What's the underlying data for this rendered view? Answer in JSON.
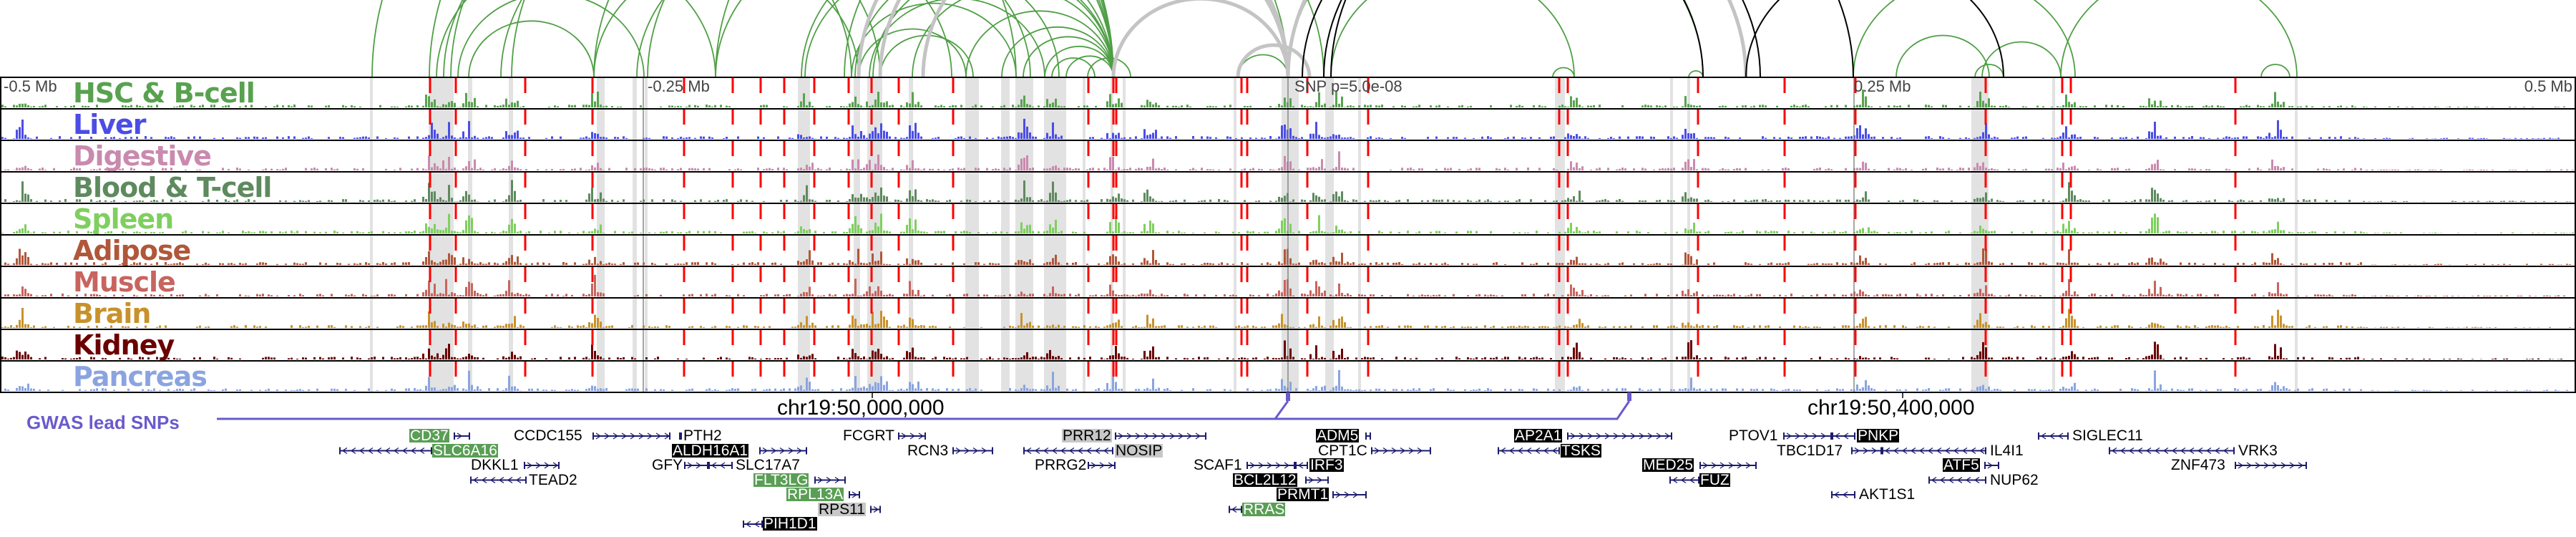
{
  "tracks": [
    {
      "label": "HSC & B-cell",
      "color": "#58a24f"
    },
    {
      "label": "Liver",
      "color": "#4b4de6"
    },
    {
      "label": "Digestive",
      "color": "#c98aae"
    },
    {
      "label": "Blood & T-cell",
      "color": "#5e8a5e"
    },
    {
      "label": "Spleen",
      "color": "#7fcf5f"
    },
    {
      "label": "Adipose",
      "color": "#b0573a"
    },
    {
      "label": "Muscle",
      "color": "#c8645e"
    },
    {
      "label": "Brain",
      "color": "#c8922a"
    },
    {
      "label": "Kidney",
      "color": "#6b0000"
    },
    {
      "label": "Pancreas",
      "color": "#8aa4e0"
    }
  ],
  "axis": {
    "left": "-0.5 Mb",
    "left_mid": "-0.25 Mb",
    "snp": "SNP p=5.0e-08",
    "right_mid": "0.25 Mb",
    "right": "0.5 Mb"
  },
  "coords": {
    "c1": "chr19:50,000,000",
    "c2": "chr19:50,400,000"
  },
  "gwas": {
    "label": "GWAS lead SNPs",
    "color": "#6a5acd"
  },
  "colors": {
    "snp_line": "#ff0000",
    "arc_green": "#4f9f45",
    "arc_gray": "#c4c4c4",
    "arc_black": "#000000",
    "gene_line": "#1c1c6e"
  },
  "genes": [
    {
      "name": "CD37",
      "style": "green",
      "strand": "+"
    },
    {
      "name": "SLC6A16",
      "style": "green",
      "strand": "-"
    },
    {
      "name": "CCDC155",
      "style": "plain",
      "strand": "+"
    },
    {
      "name": "PTH2",
      "style": "plain",
      "strand": "+"
    },
    {
      "name": "ALDH16A1",
      "style": "black",
      "strand": "+"
    },
    {
      "name": "DKKL1",
      "style": "plain",
      "strand": "+"
    },
    {
      "name": "GFY",
      "style": "plain",
      "strand": "+"
    },
    {
      "name": "SLC17A7",
      "style": "plain",
      "strand": "-"
    },
    {
      "name": "TEAD2",
      "style": "plain",
      "strand": "-"
    },
    {
      "name": "FLT3LG",
      "style": "green",
      "strand": "+"
    },
    {
      "name": "RPL13A",
      "style": "green",
      "strand": "+"
    },
    {
      "name": "RPS11",
      "style": "gray",
      "strand": "+"
    },
    {
      "name": "PIH1D1",
      "style": "black",
      "strand": "-"
    },
    {
      "name": "FCGRT",
      "style": "plain",
      "strand": "+"
    },
    {
      "name": "RCN3",
      "style": "plain",
      "strand": "+"
    },
    {
      "name": "PRR12",
      "style": "gray",
      "strand": "+"
    },
    {
      "name": "NOSIP",
      "style": "gray",
      "strand": "-"
    },
    {
      "name": "PRRG2",
      "style": "plain",
      "strand": "+"
    },
    {
      "name": "SCAF1",
      "style": "plain",
      "strand": "+"
    },
    {
      "name": "IRF3",
      "style": "black",
      "strand": "-"
    },
    {
      "name": "BCL2L12",
      "style": "black",
      "strand": "+"
    },
    {
      "name": "PRMT1",
      "style": "black",
      "strand": "+"
    },
    {
      "name": "RRAS",
      "style": "green",
      "strand": "-"
    },
    {
      "name": "ADM5",
      "style": "black",
      "strand": "+"
    },
    {
      "name": "CPT1C",
      "style": "plain",
      "strand": "+"
    },
    {
      "name": "AP2A1",
      "style": "black",
      "strand": "+"
    },
    {
      "name": "TSKS",
      "style": "black",
      "strand": "-"
    },
    {
      "name": "MED25",
      "style": "black",
      "strand": "+"
    },
    {
      "name": "FUZ",
      "style": "black",
      "strand": "-"
    },
    {
      "name": "PTOV1",
      "style": "plain",
      "strand": "+"
    },
    {
      "name": "PNKP",
      "style": "black",
      "strand": "-"
    },
    {
      "name": "TBC1D17",
      "style": "plain",
      "strand": "+"
    },
    {
      "name": "IL4I1",
      "style": "plain",
      "strand": "-"
    },
    {
      "name": "ATF5",
      "style": "black",
      "strand": "+"
    },
    {
      "name": "NUP62",
      "style": "plain",
      "strand": "-"
    },
    {
      "name": "AKT1S1",
      "style": "plain",
      "strand": "-"
    },
    {
      "name": "SIGLEC11",
      "style": "plain",
      "strand": "-"
    },
    {
      "name": "VRK3",
      "style": "plain",
      "strand": "-"
    },
    {
      "name": "ZNF473",
      "style": "plain",
      "strand": "+"
    }
  ]
}
